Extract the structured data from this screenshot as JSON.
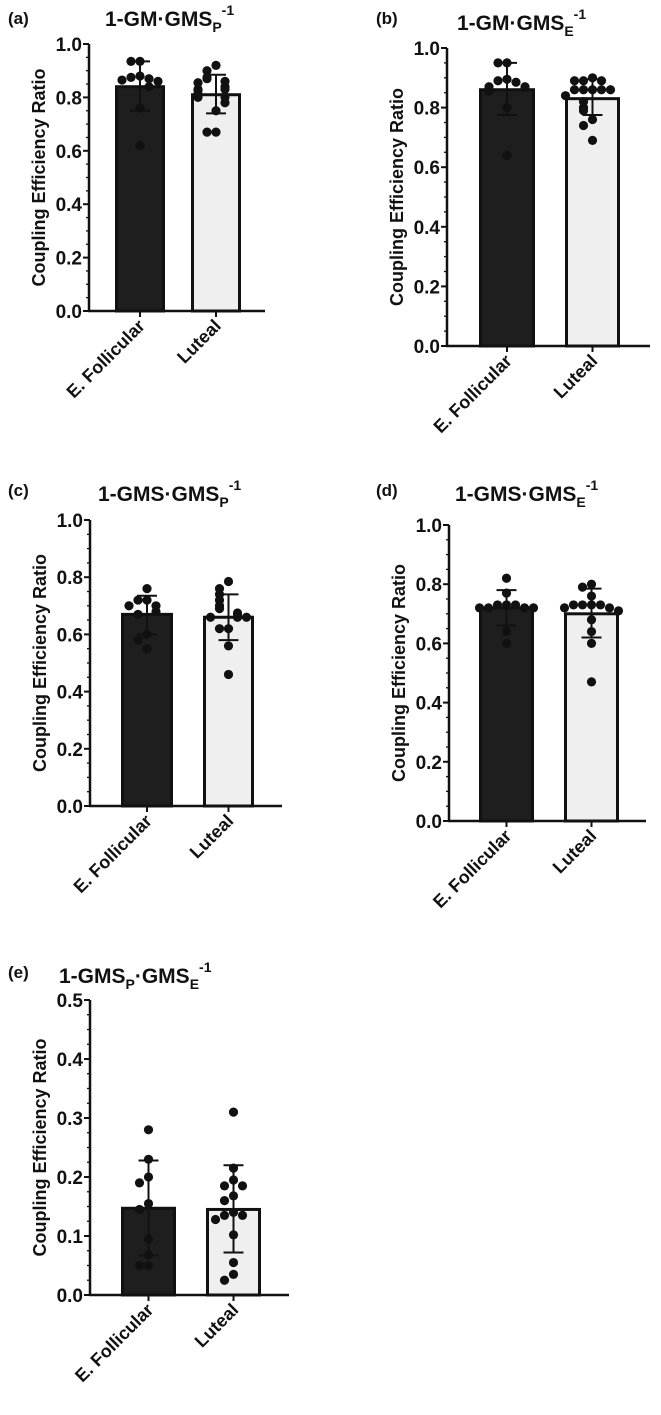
{
  "figure": {
    "y_axis_label": "Coupling Efficiency Ratio",
    "categories": [
      "E. Follicular",
      "Luteal"
    ],
    "bar_colors": {
      "E. Follicular": "#1e1e1e",
      "Luteal": "#efefef"
    },
    "point_color": "#111111"
  },
  "chart_data": [
    {
      "panel": "(a)",
      "type": "bar",
      "title": "1-GM·GMS_P^-1",
      "title_main": "1-GM·GMS",
      "title_sub": "P",
      "title_sup": "-1",
      "xlabel": "",
      "ylabel": "Coupling Efficiency Ratio",
      "ylim": [
        0,
        1.0
      ],
      "yticks": [
        "0.0",
        "0.2",
        "0.4",
        "0.6",
        "0.8",
        "1.0"
      ],
      "categories": [
        "E. Follicular",
        "Luteal"
      ],
      "values": [
        0.84,
        0.81
      ],
      "error_sd": [
        [
          0.75,
          0.935
        ],
        [
          0.74,
          0.885
        ]
      ],
      "points": [
        [
          0.935,
          0.935,
          0.875,
          0.86,
          0.88,
          0.865,
          0.87,
          0.84,
          0.76,
          0.62
        ],
        [
          0.92,
          0.9,
          0.875,
          0.87,
          0.86,
          0.855,
          0.84,
          0.83,
          0.83,
          0.825,
          0.81,
          0.8,
          0.8,
          0.78,
          0.75,
          0.67,
          0.67
        ]
      ]
    },
    {
      "panel": "(b)",
      "type": "bar",
      "title": "1-GM·GMS_E^-1",
      "title_main": "1-GM·GMS",
      "title_sub": "E",
      "title_sup": "-1",
      "xlabel": "",
      "ylabel": "Coupling Efficiency Ratio",
      "ylim": [
        0,
        1.0
      ],
      "yticks": [
        "0.0",
        "0.2",
        "0.4",
        "0.6",
        "0.8",
        "1.0"
      ],
      "categories": [
        "E. Follicular",
        "Luteal"
      ],
      "values": [
        0.86,
        0.83
      ],
      "error_sd": [
        [
          0.775,
          0.95
        ],
        [
          0.775,
          0.895
        ]
      ],
      "points": [
        [
          0.95,
          0.95,
          0.89,
          0.895,
          0.885,
          0.87,
          0.87,
          0.86,
          0.855,
          0.8,
          0.64
        ],
        [
          0.9,
          0.89,
          0.89,
          0.89,
          0.86,
          0.86,
          0.86,
          0.86,
          0.86,
          0.84,
          0.82,
          0.8,
          0.79,
          0.76,
          0.74,
          0.69
        ]
      ]
    },
    {
      "panel": "(c)",
      "type": "bar",
      "title": "1-GMS·GMS_P^-1",
      "title_main": "1-GMS·GMS",
      "title_sub": "P",
      "title_sup": "-1",
      "xlabel": "",
      "ylabel": "Coupling Efficiency Ratio",
      "ylim": [
        0,
        1.0
      ],
      "yticks": [
        "0.0",
        "0.2",
        "0.4",
        "0.6",
        "0.8",
        "1.0"
      ],
      "categories": [
        "E. Follicular",
        "Luteal"
      ],
      "values": [
        0.67,
        0.66
      ],
      "error_sd": [
        [
          0.6,
          0.735
        ],
        [
          0.58,
          0.74
        ]
      ],
      "points": [
        [
          0.76,
          0.72,
          0.72,
          0.7,
          0.7,
          0.68,
          0.67,
          0.6,
          0.58,
          0.55
        ],
        [
          0.785,
          0.76,
          0.74,
          0.72,
          0.7,
          0.69,
          0.675,
          0.67,
          0.66,
          0.66,
          0.66,
          0.62,
          0.62,
          0.56,
          0.46
        ]
      ]
    },
    {
      "panel": "(d)",
      "type": "bar",
      "title": "1-GMS·GMS_E^-1",
      "title_main": "1-GMS·GMS",
      "title_sub": "E",
      "title_sup": "-1",
      "xlabel": "",
      "ylabel": "Coupling Efficiency Ratio",
      "ylim": [
        0,
        1.0
      ],
      "yticks": [
        "0.0",
        "0.2",
        "0.4",
        "0.6",
        "0.8",
        "1.0"
      ],
      "categories": [
        "E. Follicular",
        "Luteal"
      ],
      "values": [
        0.72,
        0.7
      ],
      "error_sd": [
        [
          0.66,
          0.78
        ],
        [
          0.62,
          0.785
        ]
      ],
      "points": [
        [
          0.82,
          0.77,
          0.73,
          0.73,
          0.73,
          0.72,
          0.72,
          0.72,
          0.72,
          0.64,
          0.6
        ],
        [
          0.8,
          0.79,
          0.76,
          0.73,
          0.73,
          0.73,
          0.73,
          0.72,
          0.72,
          0.71,
          0.68,
          0.64,
          0.6,
          0.47
        ]
      ]
    },
    {
      "panel": "(e)",
      "type": "bar",
      "title": "1-GMS_P·GMS_E^-1",
      "title_main": "1-GMS",
      "title_sub": "P",
      "title_mid": "·GMS",
      "title_sub2": "E",
      "title_sup": "-1",
      "xlabel": "",
      "ylabel": "Coupling Efficiency Ratio",
      "ylim": [
        0,
        0.5
      ],
      "yticks": [
        "0.0",
        "0.1",
        "0.2",
        "0.3",
        "0.4",
        "0.5"
      ],
      "categories": [
        "E. Follicular",
        "Luteal"
      ],
      "values": [
        0.147,
        0.145
      ],
      "error_sd": [
        [
          0.067,
          0.228
        ],
        [
          0.072,
          0.22
        ]
      ],
      "points": [
        [
          0.28,
          0.23,
          0.2,
          0.19,
          0.155,
          0.145,
          0.095,
          0.068,
          0.05,
          0.05
        ],
        [
          0.31,
          0.215,
          0.195,
          0.185,
          0.185,
          0.168,
          0.16,
          0.14,
          0.135,
          0.135,
          0.128,
          0.102,
          0.055,
          0.035,
          0.025
        ]
      ]
    }
  ]
}
